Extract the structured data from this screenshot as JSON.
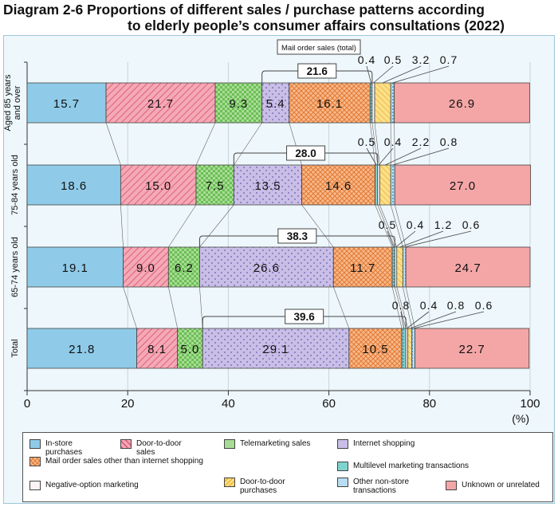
{
  "title": {
    "line1": "Diagram 2-6  Proportions of different sales / purchase patterns according",
    "line2": "to elderly people’s consumer affairs consultations (2022)"
  },
  "chart_data": {
    "type": "bar",
    "orientation": "horizontal",
    "stacked": true,
    "categories": [
      "Aged 85 years and over",
      "75-84 years old",
      "65-74 years old",
      "Total"
    ],
    "series": [
      {
        "name": "In-store purchases",
        "values": [
          15.7,
          18.6,
          19.1,
          21.8
        ]
      },
      {
        "name": "Door-to-door sales",
        "values": [
          21.7,
          15.0,
          9.0,
          8.1
        ]
      },
      {
        "name": "Telemarketing sales",
        "values": [
          9.3,
          7.5,
          6.2,
          5.0
        ]
      },
      {
        "name": "Internet shopping",
        "values": [
          5.4,
          13.5,
          26.6,
          29.1
        ]
      },
      {
        "name": "Mail order sales other than internet shopping",
        "values": [
          16.1,
          14.6,
          11.7,
          10.5
        ]
      },
      {
        "name": "Multilevel marketing transactions",
        "values": [
          0.4,
          0.5,
          0.5,
          0.8
        ]
      },
      {
        "name": "Negative-option marketing",
        "values": [
          0.5,
          0.4,
          0.4,
          0.4
        ]
      },
      {
        "name": "Door-to-door purchases",
        "values": [
          3.2,
          2.2,
          1.2,
          0.8
        ]
      },
      {
        "name": "Other non-store transactions",
        "values": [
          0.7,
          0.8,
          0.6,
          0.6
        ]
      },
      {
        "name": "Unknown or unrelated",
        "values": [
          26.9,
          27.0,
          24.7,
          22.7
        ]
      }
    ],
    "value_labels": [
      [
        "15.7",
        "21.7",
        "9.3",
        "5.4",
        "16.1",
        "0.4",
        "0.5",
        "3.2",
        "0.7",
        "26.9"
      ],
      [
        "18.6",
        "15.0",
        "7.5",
        "13.5",
        "14.6",
        "0.5",
        "0.4",
        "2.2",
        "0.8",
        "27.0"
      ],
      [
        "19.1",
        "9.0",
        "6.2",
        "26.6",
        "11.7",
        "0.5",
        "0.4",
        "1.2",
        "0.6",
        "24.7"
      ],
      [
        "21.8",
        "8.1",
        "5.0",
        "29.1",
        "10.5",
        "0.8",
        "0.4",
        "0.8",
        "0.6",
        "22.7"
      ]
    ],
    "mail_order_totals": [
      "21.6",
      "28.0",
      "38.3",
      "39.6"
    ],
    "mail_order_box_label": "Mail order sales (total)",
    "xlim": [
      0,
      100
    ],
    "xticks": [
      "0",
      "20",
      "40",
      "60",
      "80",
      "100"
    ],
    "unit_label": "(%)",
    "legend_position": "bottom",
    "colors": [
      "#8fcbe8",
      "#f4a9b6",
      "#a8dc96",
      "#c9bfe6",
      "#f8b98a",
      "#7fd3cf",
      "#f3e7f0",
      "#fbe08c",
      "#b9ddf3",
      "#f4a6a6"
    ]
  },
  "legend": [
    {
      "name": "In-store purchases",
      "lines": [
        "In-store",
        "purchases"
      ]
    },
    {
      "name": "Door-to-door sales",
      "lines": [
        "Door-to-door",
        "sales"
      ]
    },
    {
      "name": "Telemarketing sales",
      "lines": [
        "Telemarketing sales"
      ]
    },
    {
      "name": "Internet shopping",
      "lines": [
        "Internet shopping"
      ]
    },
    {
      "name": "Mail order sales other than internet shopping",
      "lines": [
        "Mail order sales other than internet shopping"
      ]
    },
    {
      "name": "Multilevel marketing transactions",
      "lines": [
        "Multilevel marketing transactions"
      ]
    },
    {
      "name": "Negative-option marketing",
      "lines": [
        "Negative-option marketing"
      ]
    },
    {
      "name": "Door-to-door purchases",
      "lines": [
        "Door-to-door",
        "purchases"
      ]
    },
    {
      "name": "Other non-store transactions",
      "lines": [
        "Other non-store",
        "transactions"
      ]
    },
    {
      "name": "Unknown or unrelated",
      "lines": [
        "Unknown or unrelated"
      ]
    }
  ],
  "category_labels": [
    [
      "Aged 85 years",
      "and over"
    ],
    [
      "75-84 years old"
    ],
    [
      "65-74 years old"
    ],
    [
      "Total"
    ]
  ]
}
